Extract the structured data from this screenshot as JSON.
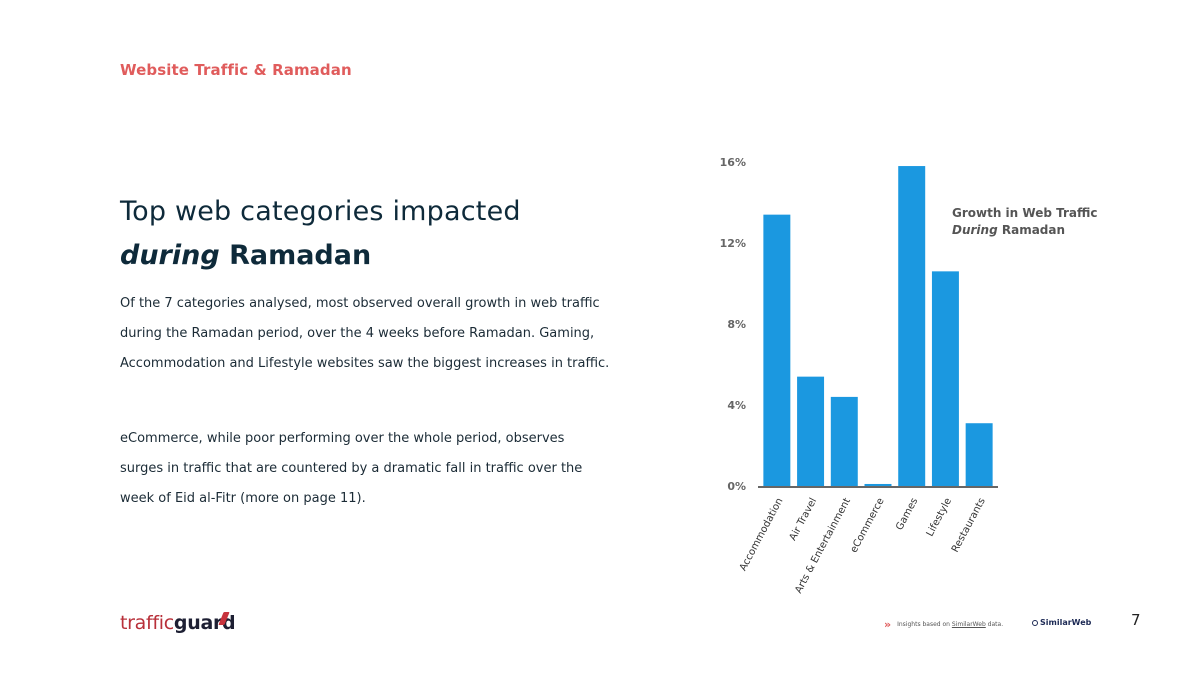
{
  "header": {
    "section_label": "Website Traffic & Ramadan"
  },
  "headline": {
    "line1": "Top web categories impacted",
    "line2_italic": "during",
    "line2_rest": " Ramadan"
  },
  "body": {
    "paragraph1": "Of the 7 categories analysed, most observed overall growth in web traffic during the Ramadan period, over the 4 weeks before Ramadan. Gaming, Accommodation and Lifestyle websites saw the biggest increases in traffic.",
    "paragraph2": "eCommerce, while poor performing over the whole period, observes surges in traffic that are countered by a dramatic fall in traffic over the week of Eid al-Fitr (more on page 11)."
  },
  "chart_data": {
    "type": "bar",
    "title": "Growth in Web Traffic During Ramadan",
    "legend": {
      "line1": "Growth in Web Traffic",
      "line2_italic": "During",
      "line2_rest": " Ramadan",
      "position": "top-right"
    },
    "categories": [
      "Accommodation",
      "Air Travel",
      "Arts & Entertainment",
      "eCommerce",
      "Games",
      "Lifestyle",
      "Restaurants"
    ],
    "values": [
      13.4,
      5.4,
      4.4,
      0.1,
      15.8,
      10.6,
      3.1
    ],
    "unit": "%",
    "ylim": [
      0,
      16
    ],
    "yticks": [
      0,
      4,
      8,
      12,
      16
    ],
    "ytick_labels": [
      "0%",
      "4%",
      "8%",
      "12%",
      "16%"
    ],
    "xlabel": "",
    "ylabel": "",
    "grid": false,
    "bar_color": "#1b98e0"
  },
  "footer": {
    "logo_light": "traffic",
    "logo_bold": "guard",
    "footnote_prefix": "Insights based on ",
    "footnote_link": "SimilarWeb",
    "footnote_suffix": " data.",
    "partner_logo": "SimilarWeb",
    "page_number": "7"
  }
}
